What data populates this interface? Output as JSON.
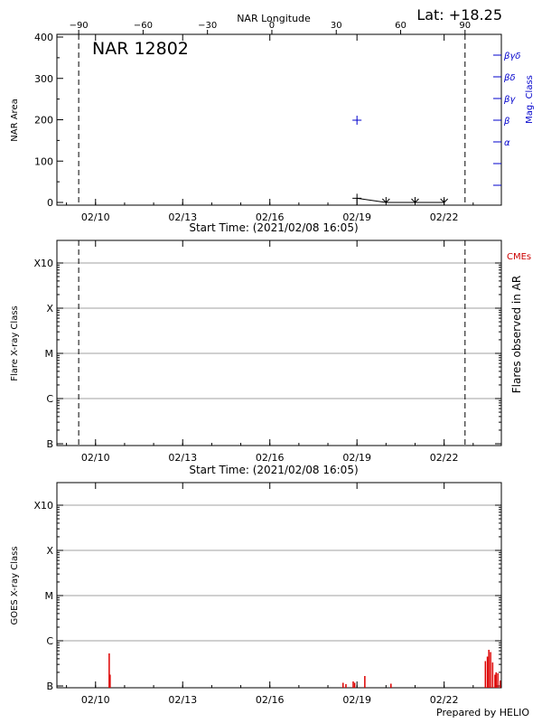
{
  "header": {
    "lat_label": "Lat: +18.25",
    "longitude_axis_label": "NAR Longitude",
    "footer": "Prepared by HELIO"
  },
  "colors": {
    "axis": "#000000",
    "grid": "#a0a0a0",
    "mag_class": "#0000cc",
    "cme": "#cc0000",
    "flare": "#dd0000"
  },
  "chart_data": [
    {
      "type": "scatter",
      "title": "NAR 12802",
      "ylabel": "NAR Area",
      "y2label": "Mag. Class",
      "xlabel": "Start Time: (2021/02/08 16:05)",
      "x_range_days": [
        0,
        15.3
      ],
      "x_ticks": [
        {
          "day": 1.33,
          "label": "02/10"
        },
        {
          "day": 4.33,
          "label": "02/13"
        },
        {
          "day": 7.33,
          "label": "02/16"
        },
        {
          "day": 10.33,
          "label": "02/19"
        },
        {
          "day": 13.33,
          "label": "02/22"
        }
      ],
      "longitude_ticks": [
        {
          "lon": -90,
          "label": "−90"
        },
        {
          "lon": -60,
          "label": "−60"
        },
        {
          "lon": -30,
          "label": "−30"
        },
        {
          "lon": 0,
          "label": "0"
        },
        {
          "lon": 30,
          "label": "30"
        },
        {
          "lon": 60,
          "label": "60"
        },
        {
          "lon": 90,
          "label": "90"
        }
      ],
      "ylim": [
        0,
        400
      ],
      "y_ticks": [
        0,
        100,
        200,
        300,
        400
      ],
      "mag_class_labels": [
        "α",
        "β",
        "βγ",
        "βδ",
        "βγδ"
      ],
      "limb_lines_days": [
        0.75,
        14.05
      ],
      "area_series": [
        {
          "day": 10.33,
          "area": 10
        },
        {
          "day": 11.33,
          "area": 0
        },
        {
          "day": 12.33,
          "area": 0
        },
        {
          "day": 13.33,
          "area": 0
        }
      ],
      "mag_class_points": [
        {
          "day": 10.33,
          "class": "β"
        }
      ]
    },
    {
      "type": "scatter",
      "ylabel": "Flare X-ray Class",
      "y2label": "Flares observed in AR",
      "cme_label": "CMEs",
      "xlabel": "Start Time: (2021/02/08 16:05)",
      "y_ticks": [
        "B",
        "C",
        "M",
        "X",
        "X10"
      ],
      "limb_lines_days": [
        0.75,
        14.05
      ],
      "flares": []
    },
    {
      "type": "bar",
      "ylabel": "GOES X-ray Class",
      "y_ticks": [
        "B",
        "C",
        "M",
        "X",
        "X10"
      ],
      "flux_bars": [
        {
          "day": 1.8,
          "level": 0.72
        },
        {
          "day": 1.83,
          "level": 0.25
        },
        {
          "day": 9.85,
          "level": 0.07
        },
        {
          "day": 9.95,
          "level": 0.04
        },
        {
          "day": 10.2,
          "level": 0.1
        },
        {
          "day": 10.25,
          "level": 0.07
        },
        {
          "day": 10.6,
          "level": 0.22
        },
        {
          "day": 11.5,
          "level": 0.05
        },
        {
          "day": 14.75,
          "level": 0.55
        },
        {
          "day": 14.82,
          "level": 0.65
        },
        {
          "day": 14.87,
          "level": 0.8
        },
        {
          "day": 14.93,
          "level": 0.75
        },
        {
          "day": 15.0,
          "level": 0.52
        },
        {
          "day": 15.08,
          "level": 0.25
        },
        {
          "day": 15.12,
          "level": 0.3
        },
        {
          "day": 15.18,
          "level": 0.28
        },
        {
          "day": 15.26,
          "level": 0.12
        }
      ]
    }
  ]
}
